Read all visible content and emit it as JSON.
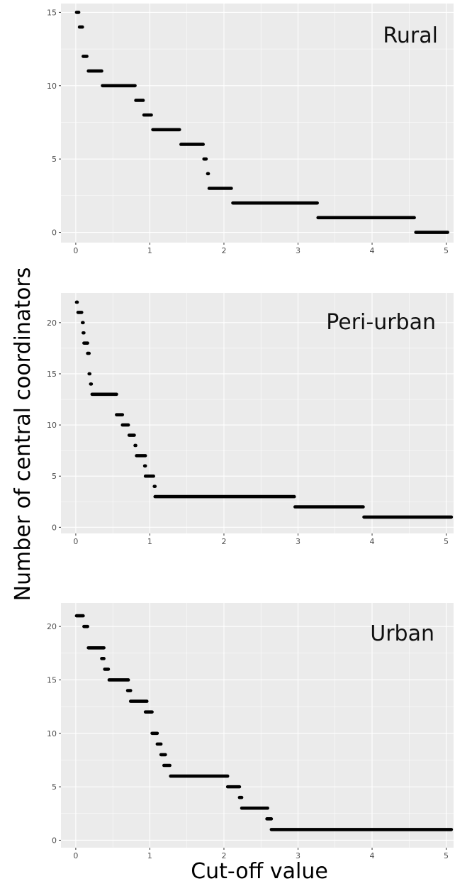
{
  "figure": {
    "y_axis_title": "Number of central coordinators",
    "x_axis_title": "Cut-off value"
  },
  "colors": {
    "panel_background": "#ebebeb",
    "grid_major": "#ffffff",
    "points": "#000000",
    "tick_text": "#4d4d4d"
  },
  "chart_data": [
    {
      "type": "scatter",
      "label": "Rural",
      "xlim": [
        -0.2,
        5.1
      ],
      "ylim": [
        -0.7,
        15.6
      ],
      "x_ticks": [
        0,
        1,
        2,
        3,
        4,
        5
      ],
      "y_ticks": [
        0,
        5,
        10,
        15
      ],
      "grid": true,
      "segments": [
        {
          "y": 15,
          "x": [
            0.01,
            0.04
          ]
        },
        {
          "y": 14,
          "x": [
            0.05,
            0.09
          ]
        },
        {
          "y": 12,
          "x": [
            0.1,
            0.15
          ]
        },
        {
          "y": 11,
          "x": [
            0.17,
            0.35
          ]
        },
        {
          "y": 10,
          "x": [
            0.36,
            0.8
          ]
        },
        {
          "y": 9,
          "x": [
            0.81,
            0.91
          ]
        },
        {
          "y": 8,
          "x": [
            0.92,
            1.02
          ]
        },
        {
          "y": 7,
          "x": [
            1.04,
            1.4
          ]
        },
        {
          "y": 6,
          "x": [
            1.42,
            1.72
          ]
        },
        {
          "y": 5,
          "x": [
            1.73,
            1.76
          ]
        },
        {
          "y": 4,
          "x": [
            1.78,
            1.79
          ]
        },
        {
          "y": 3,
          "x": [
            1.8,
            2.1
          ]
        },
        {
          "y": 2,
          "x": [
            2.12,
            3.26
          ]
        },
        {
          "y": 1,
          "x": [
            3.27,
            4.57
          ]
        },
        {
          "y": 0,
          "x": [
            4.59,
            5.02
          ]
        }
      ]
    },
    {
      "type": "scatter",
      "label": "Peri-urban",
      "xlim": [
        -0.2,
        5.1
      ],
      "ylim": [
        -0.6,
        22.9
      ],
      "x_ticks": [
        0,
        1,
        2,
        3,
        4,
        5
      ],
      "y_ticks": [
        0,
        5,
        10,
        15,
        20
      ],
      "grid": true,
      "segments": [
        {
          "y": 22,
          "x": [
            0.01,
            0.02
          ]
        },
        {
          "y": 21,
          "x": [
            0.03,
            0.08
          ]
        },
        {
          "y": 20,
          "x": [
            0.09,
            0.1
          ]
        },
        {
          "y": 19,
          "x": [
            0.1,
            0.11
          ]
        },
        {
          "y": 18,
          "x": [
            0.11,
            0.16
          ]
        },
        {
          "y": 17,
          "x": [
            0.16,
            0.18
          ]
        },
        {
          "y": 15,
          "x": [
            0.18,
            0.19
          ]
        },
        {
          "y": 14,
          "x": [
            0.2,
            0.21
          ]
        },
        {
          "y": 13,
          "x": [
            0.22,
            0.55
          ]
        },
        {
          "y": 11,
          "x": [
            0.55,
            0.63
          ]
        },
        {
          "y": 10,
          "x": [
            0.63,
            0.71
          ]
        },
        {
          "y": 9,
          "x": [
            0.72,
            0.79
          ]
        },
        {
          "y": 8,
          "x": [
            0.8,
            0.81
          ]
        },
        {
          "y": 7,
          "x": [
            0.82,
            0.94
          ]
        },
        {
          "y": 6,
          "x": [
            0.93,
            0.94
          ]
        },
        {
          "y": 5,
          "x": [
            0.94,
            1.05
          ]
        },
        {
          "y": 4,
          "x": [
            1.06,
            1.07
          ]
        },
        {
          "y": 3,
          "x": [
            1.07,
            2.95
          ]
        },
        {
          "y": 2,
          "x": [
            2.96,
            3.88
          ]
        },
        {
          "y": 1,
          "x": [
            3.89,
            5.07
          ]
        }
      ]
    },
    {
      "type": "scatter",
      "label": "Urban",
      "xlim": [
        -0.2,
        5.1
      ],
      "ylim": [
        -0.7,
        22.2
      ],
      "x_ticks": [
        0,
        1,
        2,
        3,
        4,
        5
      ],
      "y_ticks": [
        0,
        5,
        10,
        15,
        20
      ],
      "grid": true,
      "segments": [
        {
          "y": 21,
          "x": [
            0.01,
            0.1
          ]
        },
        {
          "y": 20,
          "x": [
            0.11,
            0.16
          ]
        },
        {
          "y": 18,
          "x": [
            0.17,
            0.38
          ]
        },
        {
          "y": 17,
          "x": [
            0.35,
            0.38
          ]
        },
        {
          "y": 16,
          "x": [
            0.39,
            0.44
          ]
        },
        {
          "y": 15,
          "x": [
            0.45,
            0.71
          ]
        },
        {
          "y": 14,
          "x": [
            0.7,
            0.74
          ]
        },
        {
          "y": 13,
          "x": [
            0.74,
            0.96
          ]
        },
        {
          "y": 12,
          "x": [
            0.94,
            1.03
          ]
        },
        {
          "y": 10,
          "x": [
            1.03,
            1.1
          ]
        },
        {
          "y": 9,
          "x": [
            1.1,
            1.15
          ]
        },
        {
          "y": 8,
          "x": [
            1.15,
            1.21
          ]
        },
        {
          "y": 7,
          "x": [
            1.19,
            1.27
          ]
        },
        {
          "y": 6,
          "x": [
            1.28,
            2.05
          ]
        },
        {
          "y": 5,
          "x": [
            2.05,
            2.21
          ]
        },
        {
          "y": 4,
          "x": [
            2.21,
            2.24
          ]
        },
        {
          "y": 3,
          "x": [
            2.24,
            2.59
          ]
        },
        {
          "y": 2,
          "x": [
            2.58,
            2.64
          ]
        },
        {
          "y": 1,
          "x": [
            2.64,
            5.07
          ]
        }
      ]
    }
  ]
}
